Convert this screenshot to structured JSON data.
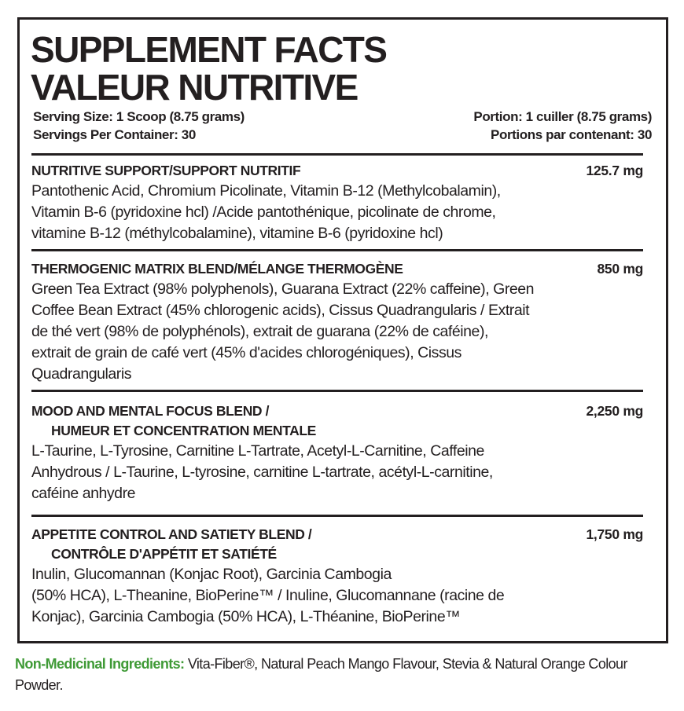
{
  "title": [
    "SUPPLEMENT FACTS",
    "VALEUR NUTRITIVE"
  ],
  "serving": {
    "left": [
      "Serving Size: 1 Scoop (8.75 grams)",
      "Servings Per Container: 30"
    ],
    "right": [
      "Portion: 1 cuiller (8.75 grams)",
      "Portions par contenant: 30"
    ]
  },
  "sections": [
    {
      "heading": [
        "NUTRITIVE SUPPORT/SUPPORT NUTRITIF"
      ],
      "amount": "125.7 mg",
      "lines": [
        "Pantothenic Acid, Chromium Picolinate, Vitamin B-12 (Methylcobalamin),",
        "Vitamin B-6 (pyridoxine hcl) /Acide pantothénique, picolinate de chrome,",
        "vitamine B-12 (méthylcobalamine), vitamine B-6 (pyridoxine hcl)"
      ]
    },
    {
      "heading": [
        "THERMOGENIC MATRIX BLEND/MÉLANGE THERMOGÈNE"
      ],
      "amount": "850 mg",
      "lines": [
        "Green Tea Extract (98% polyphenols), Guarana Extract (22% caffeine), Green",
        "Coffee Bean Extract (45% chlorogenic acids), Cissus Quadrangularis / Extrait",
        "de thé vert (98% de polyphénols), extrait de guarana (22% de caféine),",
        "extrait de grain de café vert (45% d'acides chlorogéniques), Cissus",
        "Quadrangularis"
      ]
    },
    {
      "heading": [
        "MOOD AND MENTAL FOCUS BLEND /",
        "HUMEUR ET CONCENTRATION MENTALE"
      ],
      "amount": "2,250 mg",
      "lines": [
        "L-Taurine, L-Tyrosine, Carnitine L-Tartrate, Acetyl-L-Carnitine, Caffeine",
        "Anhydrous / L-Taurine, L-tyrosine, carnitine L-tartrate, acétyl-L-carnitine,",
        "caféine anhydre"
      ]
    },
    {
      "heading": [
        "APPETITE CONTROL AND SATIETY BLEND /",
        "CONTRÔLE D'APPÉTIT ET SATIÉTÉ"
      ],
      "amount": "1,750 mg",
      "lines": [
        "Inulin, Glucomannan (Konjac Root), Garcinia Cambogia",
        "(50% HCA), L-Theanine, BioPerine™ / Inuline, Glucomannane (racine de",
        "Konjac), Garcinia Cambogia (50% HCA), L-Théanine, BioPerine™"
      ]
    }
  ],
  "non_medicinal": {
    "label": "Non-Medicinal Ingredients:",
    "text": " Vita-Fiber®, Natural Peach Mango Flavour, Stevia & Natural Orange Colour Powder."
  },
  "colors": {
    "text": "#231f20",
    "accent_green": "#3f9a36"
  }
}
